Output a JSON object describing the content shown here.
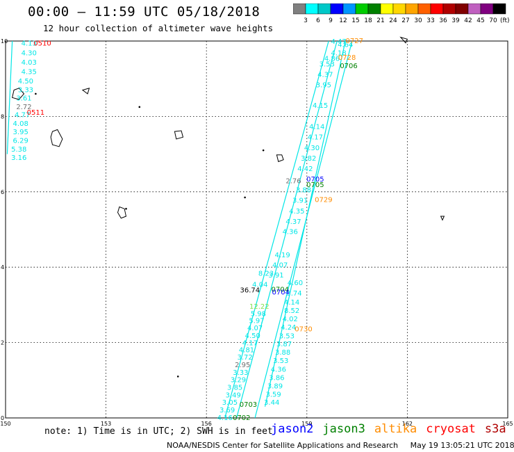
{
  "header": {
    "title": "00:00 – 11:59 UTC 05/18/2018",
    "subtitle": "12 hour collection of altimeter wave heights"
  },
  "colorbar": {
    "unit": "(ft)",
    "colors": [
      "#808080",
      "#00ffff",
      "#00c8c8",
      "#0000ff",
      "#0096ff",
      "#00cc00",
      "#008000",
      "#ffff00",
      "#ffd700",
      "#ffa500",
      "#ff6000",
      "#ff0000",
      "#b00000",
      "#800000",
      "#c060c0",
      "#800080",
      "#000000"
    ],
    "labels": [
      "3",
      "6",
      "9",
      "12",
      "15",
      "18",
      "21",
      "24",
      "27",
      "30",
      "33",
      "36",
      "39",
      "42",
      "45",
      "70"
    ]
  },
  "axes": {
    "x_ticks": [
      "150",
      "153",
      "156",
      "159",
      "162",
      "165"
    ],
    "y_ticks": [
      "0",
      "2",
      "4",
      "6",
      "8",
      "10"
    ]
  },
  "colors": {
    "cyan": "#00e6e6",
    "gray": "#707070",
    "green": "#008000",
    "lightgreen": "#7fe050",
    "orange": "#ff8c00",
    "red": "#ff0000",
    "blue": "#0000ff",
    "black": "#000000"
  },
  "track_labels": [
    {
      "text": "4.13",
      "lon": 150.7,
      "lat": 9.95,
      "c": "cyan"
    },
    {
      "text": "4.30",
      "lon": 150.7,
      "lat": 9.7,
      "c": "cyan"
    },
    {
      "text": "4.03",
      "lon": 150.7,
      "lat": 9.45,
      "c": "cyan"
    },
    {
      "text": "4.35",
      "lon": 150.7,
      "lat": 9.2,
      "c": "cyan"
    },
    {
      "text": "4.50",
      "lon": 150.6,
      "lat": 8.95,
      "c": "cyan"
    },
    {
      "text": "3.33",
      "lon": 150.6,
      "lat": 8.72,
      "c": "cyan"
    },
    {
      "text": "3.61",
      "lon": 150.55,
      "lat": 8.5,
      "c": "cyan"
    },
    {
      "text": "2.72",
      "lon": 150.55,
      "lat": 8.27,
      "c": "gray"
    },
    {
      "text": "4.77",
      "lon": 150.5,
      "lat": 8.05,
      "c": "cyan"
    },
    {
      "text": "4.08",
      "lon": 150.45,
      "lat": 7.82,
      "c": "cyan"
    },
    {
      "text": "3.95",
      "lon": 150.45,
      "lat": 7.6,
      "c": "cyan"
    },
    {
      "text": "6.29",
      "lon": 150.45,
      "lat": 7.37,
      "c": "cyan"
    },
    {
      "text": "5.38",
      "lon": 150.4,
      "lat": 7.14,
      "c": "cyan"
    },
    {
      "text": "3.16",
      "lon": 150.4,
      "lat": 6.92,
      "c": "cyan"
    },
    {
      "text": "12.22",
      "lon": 157.58,
      "lat": 2.97,
      "c": "lightgreen"
    },
    {
      "text": "5.98",
      "lon": 157.55,
      "lat": 2.78,
      "c": "cyan"
    },
    {
      "text": "5.97",
      "lon": 157.5,
      "lat": 2.59,
      "c": "cyan"
    },
    {
      "text": "4.07",
      "lon": 157.45,
      "lat": 2.4,
      "c": "cyan"
    },
    {
      "text": "4.50",
      "lon": 157.38,
      "lat": 2.2,
      "c": "cyan"
    },
    {
      "text": "4.17",
      "lon": 157.3,
      "lat": 2.0,
      "c": "cyan"
    },
    {
      "text": "4.81",
      "lon": 157.2,
      "lat": 1.82,
      "c": "cyan"
    },
    {
      "text": "3.72",
      "lon": 157.15,
      "lat": 1.62,
      "c": "cyan"
    },
    {
      "text": "2.95",
      "lon": 157.08,
      "lat": 1.42,
      "c": "gray"
    },
    {
      "text": "3.33",
      "lon": 157.02,
      "lat": 1.22,
      "c": "cyan"
    },
    {
      "text": "3.29",
      "lon": 156.95,
      "lat": 1.02,
      "c": "cyan"
    },
    {
      "text": "3.85",
      "lon": 156.85,
      "lat": 0.82,
      "c": "cyan"
    },
    {
      "text": "3.49",
      "lon": 156.8,
      "lat": 0.62,
      "c": "cyan"
    },
    {
      "text": "3.05",
      "lon": 156.7,
      "lat": 0.42,
      "c": "cyan"
    },
    {
      "text": "3.69",
      "lon": 156.62,
      "lat": 0.22,
      "c": "cyan"
    },
    {
      "text": "4.16",
      "lon": 156.55,
      "lat": 0.02,
      "c": "cyan"
    },
    {
      "text": "3.74",
      "lon": 158.62,
      "lat": 3.32,
      "c": "cyan"
    },
    {
      "text": "4.14",
      "lon": 158.55,
      "lat": 3.08,
      "c": "cyan"
    },
    {
      "text": "8.52",
      "lon": 158.55,
      "lat": 2.86,
      "c": "cyan"
    },
    {
      "text": "4.02",
      "lon": 158.5,
      "lat": 2.64,
      "c": "cyan"
    },
    {
      "text": "4.24",
      "lon": 158.45,
      "lat": 2.42,
      "c": "cyan"
    },
    {
      "text": "3.53",
      "lon": 158.4,
      "lat": 2.19,
      "c": "cyan"
    },
    {
      "text": "3.87",
      "lon": 158.32,
      "lat": 1.97,
      "c": "cyan"
    },
    {
      "text": "3.88",
      "lon": 158.28,
      "lat": 1.75,
      "c": "cyan"
    },
    {
      "text": "3.53",
      "lon": 158.22,
      "lat": 1.53,
      "c": "cyan"
    },
    {
      "text": "4.36",
      "lon": 158.15,
      "lat": 1.3,
      "c": "cyan"
    },
    {
      "text": "3.86",
      "lon": 158.1,
      "lat": 1.08,
      "c": "cyan"
    },
    {
      "text": "3.89",
      "lon": 158.05,
      "lat": 0.86,
      "c": "cyan"
    },
    {
      "text": "3.59",
      "lon": 158.0,
      "lat": 0.64,
      "c": "cyan"
    },
    {
      "text": "3.44",
      "lon": 157.95,
      "lat": 0.42,
      "c": "cyan"
    },
    {
      "text": "36.74",
      "lon": 157.3,
      "lat": 3.4,
      "c": "black"
    },
    {
      "text": "4.04",
      "lon": 157.6,
      "lat": 3.55,
      "c": "cyan"
    },
    {
      "text": "8.23",
      "lon": 157.78,
      "lat": 3.85,
      "c": "cyan"
    },
    {
      "text": "3.91",
      "lon": 158.08,
      "lat": 3.8,
      "c": "cyan"
    },
    {
      "text": "4.07",
      "lon": 158.2,
      "lat": 4.07,
      "c": "cyan"
    },
    {
      "text": "4.19",
      "lon": 158.27,
      "lat": 4.34,
      "c": "cyan"
    },
    {
      "text": "4.60",
      "lon": 158.65,
      "lat": 3.6,
      "c": "cyan"
    },
    {
      "text": "4.36",
      "lon": 158.5,
      "lat": 4.95,
      "c": "cyan"
    },
    {
      "text": "4.37",
      "lon": 158.6,
      "lat": 5.22,
      "c": "cyan"
    },
    {
      "text": "4.35",
      "lon": 158.7,
      "lat": 5.5,
      "c": "cyan"
    },
    {
      "text": "3.91",
      "lon": 158.8,
      "lat": 5.78,
      "c": "cyan"
    },
    {
      "text": "3.88",
      "lon": 158.9,
      "lat": 6.06,
      "c": "cyan"
    },
    {
      "text": "2.76",
      "lon": 158.6,
      "lat": 6.3,
      "c": "gray"
    },
    {
      "text": "4.42",
      "lon": 158.95,
      "lat": 6.62,
      "c": "cyan"
    },
    {
      "text": "3.82",
      "lon": 159.05,
      "lat": 6.9,
      "c": "cyan"
    },
    {
      "text": "4.30",
      "lon": 159.15,
      "lat": 7.18,
      "c": "cyan"
    },
    {
      "text": "4.17",
      "lon": 159.25,
      "lat": 7.46,
      "c": "cyan"
    },
    {
      "text": "4.14",
      "lon": 159.3,
      "lat": 7.74,
      "c": "cyan"
    },
    {
      "text": "4.15",
      "lon": 159.4,
      "lat": 8.3,
      "c": "cyan"
    },
    {
      "text": "3.95",
      "lon": 159.5,
      "lat": 8.85,
      "c": "cyan"
    },
    {
      "text": "4.37",
      "lon": 159.55,
      "lat": 9.12,
      "c": "cyan"
    },
    {
      "text": "3.53",
      "lon": 159.6,
      "lat": 9.4,
      "c": "cyan"
    },
    {
      "text": "4.86",
      "lon": 159.75,
      "lat": 9.55,
      "c": "cyan"
    },
    {
      "text": "4.18",
      "lon": 159.95,
      "lat": 9.7,
      "c": "cyan"
    },
    {
      "text": "4.64",
      "lon": 160.15,
      "lat": 9.92,
      "c": "cyan"
    },
    {
      "text": "4.47",
      "lon": 159.95,
      "lat": 10.0,
      "c": "cyan"
    },
    {
      "text": "0510",
      "lon": 151.1,
      "lat": 9.95,
      "c": "red"
    },
    {
      "text": "0511",
      "lon": 150.9,
      "lat": 8.12,
      "c": "red"
    },
    {
      "text": "0727",
      "lon": 160.42,
      "lat": 10.02,
      "c": "orange"
    },
    {
      "text": "0728",
      "lon": 160.2,
      "lat": 9.58,
      "c": "orange"
    },
    {
      "text": "0706",
      "lon": 160.25,
      "lat": 9.35,
      "c": "green"
    },
    {
      "text": "0705",
      "lon": 159.25,
      "lat": 6.35,
      "c": "blue"
    },
    {
      "text": "0705",
      "lon": 159.25,
      "lat": 6.2,
      "c": "green"
    },
    {
      "text": "0729",
      "lon": 159.5,
      "lat": 5.8,
      "c": "orange"
    },
    {
      "text": "0704",
      "lon": 158.2,
      "lat": 3.42,
      "c": "green"
    },
    {
      "text": "0704",
      "lon": 158.22,
      "lat": 3.35,
      "c": "blue"
    },
    {
      "text": "0730",
      "lon": 158.9,
      "lat": 2.37,
      "c": "orange"
    },
    {
      "text": "0703",
      "lon": 157.25,
      "lat": 0.37,
      "c": "green"
    },
    {
      "text": "0702",
      "lon": 157.05,
      "lat": 0.02,
      "c": "green"
    }
  ],
  "footer": {
    "note": "note:  1) Time is in UTC;  2) SWH is in feet",
    "satellites": [
      {
        "name": "jason2",
        "color": "#0000ff"
      },
      {
        "name": "jason3",
        "color": "#008000"
      },
      {
        "name": "altika",
        "color": "#ff8c00"
      },
      {
        "name": "cryosat",
        "color": "#ff0000"
      },
      {
        "name": "s3a",
        "color": "#b00000"
      }
    ],
    "credit": "NOAA/NESDIS Center for Satellite Applications and Research",
    "timestamp": "May 19 13:05:21 UTC 2018"
  }
}
